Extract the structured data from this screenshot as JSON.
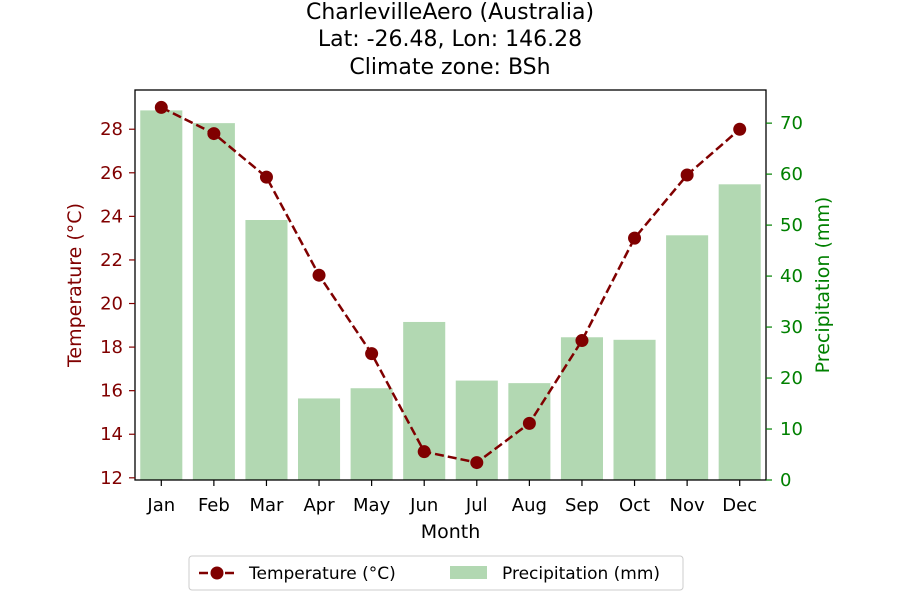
{
  "title": {
    "line1": "CharlevilleAero (Australia)",
    "line2": "Lat: -26.48, Lon: 146.28",
    "line3": "Climate zone: BSh"
  },
  "colors": {
    "temperature": "#800000",
    "precipitation": "#b2d8b2",
    "precip_axis": "#008000"
  },
  "chart_data": {
    "type": "bar+line",
    "categories": [
      "Jan",
      "Feb",
      "Mar",
      "Apr",
      "May",
      "Jun",
      "Jul",
      "Aug",
      "Sep",
      "Oct",
      "Nov",
      "Dec"
    ],
    "series": [
      {
        "name": "Temperature (°C)",
        "type": "line",
        "axis": "left",
        "values": [
          29.0,
          27.8,
          25.8,
          21.3,
          17.7,
          13.2,
          12.7,
          14.5,
          18.3,
          23.0,
          25.9,
          28.0
        ]
      },
      {
        "name": "Precipitation (mm)",
        "type": "bar",
        "axis": "right",
        "values": [
          72.5,
          70.0,
          51.0,
          16.0,
          18.0,
          31.0,
          19.5,
          19.0,
          28.0,
          27.5,
          48.0,
          58.0
        ]
      }
    ],
    "xlabel": "Month",
    "ylabel_left": "Temperature (°C)",
    "ylabel_right": "Precipitation (mm)",
    "ylim_left": [
      11.9,
      29.8
    ],
    "ylim_right": [
      0,
      76.5
    ],
    "yticks_left": [
      12,
      14,
      16,
      18,
      20,
      22,
      24,
      26,
      28
    ],
    "yticks_right": [
      0,
      10,
      20,
      30,
      40,
      50,
      60,
      70
    ],
    "legend_position": "bottom-center",
    "grid": false
  }
}
